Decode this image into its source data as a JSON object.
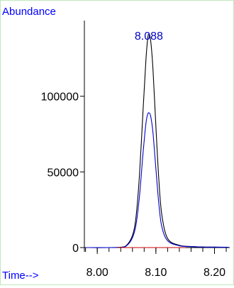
{
  "chart_data": {
    "type": "line",
    "ylabel": "Abundance",
    "xlabel": "Time-->",
    "xlim": [
      7.978,
      8.226
    ],
    "ylim": [
      0,
      150000
    ],
    "x_ticks": [
      8.0,
      8.1,
      8.2
    ],
    "x_tick_labels": [
      "8.00",
      "8.10",
      "8.20"
    ],
    "y_ticks": [
      0,
      50000,
      100000
    ],
    "y_tick_labels": [
      "0",
      "50000",
      "100000"
    ],
    "grid": false,
    "annotations": [
      {
        "text": "8.088",
        "x": 8.088,
        "y": 141000
      }
    ],
    "series": [
      {
        "color": "#000000",
        "x": [
          7.98,
          8.02,
          8.04,
          8.05,
          8.06,
          8.066,
          8.072,
          8.078,
          8.083,
          8.086,
          8.088,
          8.091,
          8.095,
          8.1,
          8.105,
          8.11,
          8.12,
          8.14,
          8.16,
          8.18,
          8.2,
          8.224
        ],
        "y": [
          0,
          0,
          200,
          1500,
          8000,
          20000,
          48000,
          90000,
          124000,
          138000,
          141000,
          137000,
          118000,
          80000,
          45000,
          22000,
          6000,
          1500,
          700,
          400,
          300,
          200
        ]
      },
      {
        "color": "#0000cc",
        "x": [
          7.98,
          8.02,
          8.04,
          8.05,
          8.06,
          8.066,
          8.072,
          8.078,
          8.083,
          8.086,
          8.088,
          8.091,
          8.095,
          8.1,
          8.105,
          8.11,
          8.12,
          8.14,
          8.16,
          8.18,
          8.2,
          8.224
        ],
        "y": [
          0,
          0,
          150,
          1200,
          6500,
          15000,
          34000,
          62000,
          82000,
          88000,
          89000,
          87000,
          76000,
          52000,
          29000,
          14000,
          4500,
          1200,
          600,
          350,
          250,
          150
        ]
      },
      {
        "color": "#cc0000",
        "x": [
          8.035,
          8.15
        ],
        "y": [
          0,
          0
        ]
      }
    ]
  }
}
